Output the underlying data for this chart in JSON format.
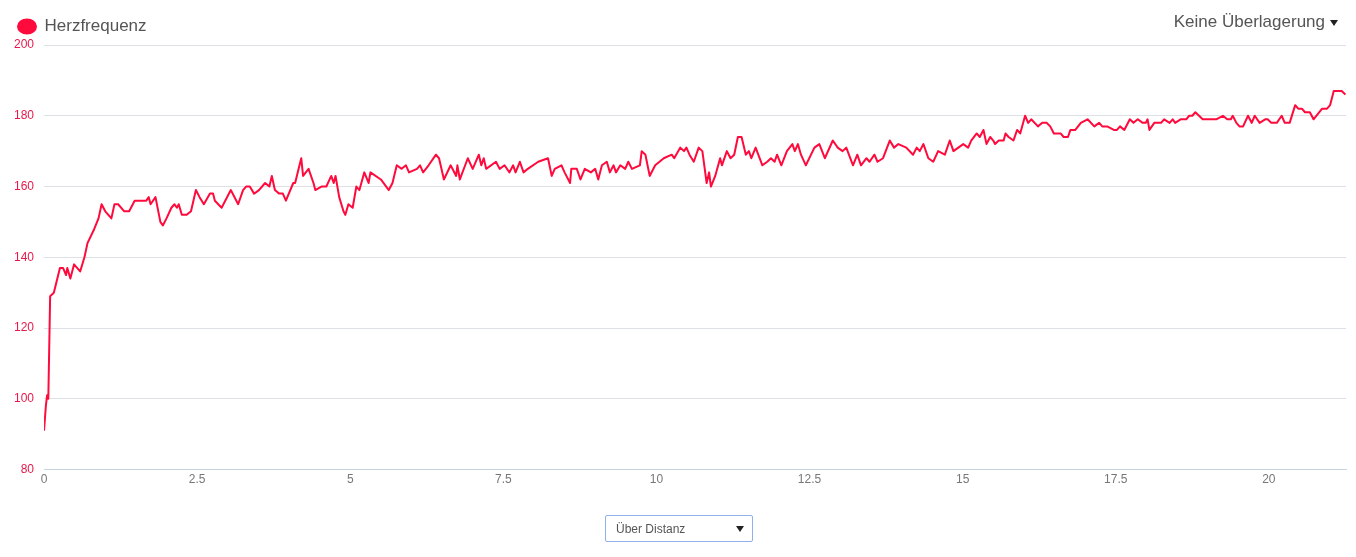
{
  "chart_data": {
    "type": "line",
    "x": [
      0,
      0.03,
      0.05,
      0.07,
      0.1,
      0.16,
      0.26,
      0.31,
      0.36,
      0.38,
      0.43,
      0.49,
      0.59,
      0.66,
      0.71,
      0.82,
      0.89,
      0.94,
      1.0,
      1.1,
      1.15,
      1.21,
      1.31,
      1.39,
      1.48,
      1.67,
      1.71,
      1.74,
      1.82,
      1.9,
      1.94,
      2.0,
      2.08,
      2.13,
      2.17,
      2.2,
      2.25,
      2.33,
      2.4,
      2.48,
      2.54,
      2.61,
      2.71,
      2.76,
      2.79,
      2.9,
      3.05,
      3.17,
      3.25,
      3.3,
      3.36,
      3.43,
      3.51,
      3.61,
      3.68,
      3.72,
      3.77,
      3.84,
      3.9,
      3.95,
      4.07,
      4.1,
      4.2,
      4.23,
      4.32,
      4.4,
      4.43,
      4.53,
      4.61,
      4.69,
      4.73,
      4.76,
      4.82,
      4.89,
      4.92,
      4.97,
      5.04,
      5.1,
      5.15,
      5.23,
      5.3,
      5.33,
      5.5,
      5.63,
      5.69,
      5.76,
      5.84,
      5.91,
      5.96,
      6.09,
      6.14,
      6.19,
      6.28,
      6.4,
      6.45,
      6.53,
      6.64,
      6.73,
      6.75,
      6.79,
      6.92,
      7.0,
      7.1,
      7.14,
      7.18,
      7.22,
      7.38,
      7.44,
      7.52,
      7.6,
      7.66,
      7.7,
      7.77,
      7.83,
      7.9,
      8.07,
      8.23,
      8.29,
      8.34,
      8.45,
      8.5,
      8.59,
      8.61,
      8.7,
      8.76,
      8.83,
      8.93,
      9.0,
      9.05,
      9.11,
      9.19,
      9.24,
      9.3,
      9.34,
      9.41,
      9.49,
      9.54,
      9.6,
      9.73,
      9.76,
      9.82,
      9.89,
      9.98,
      10.12,
      10.25,
      10.29,
      10.39,
      10.45,
      10.49,
      10.54,
      10.61,
      10.69,
      10.75,
      10.82,
      10.86,
      10.89,
      10.96,
      11.04,
      11.07,
      11.15,
      11.21,
      11.27,
      11.33,
      11.39,
      11.46,
      11.51,
      11.55,
      11.62,
      11.73,
      11.81,
      11.87,
      11.93,
      11.97,
      12.04,
      12.13,
      12.22,
      12.26,
      12.31,
      12.36,
      12.44,
      12.58,
      12.66,
      12.75,
      12.88,
      12.96,
      13.04,
      13.1,
      13.21,
      13.28,
      13.34,
      13.43,
      13.48,
      13.56,
      13.61,
      13.7,
      13.81,
      13.88,
      13.95,
      14.08,
      14.19,
      14.25,
      14.3,
      14.36,
      14.44,
      14.52,
      14.6,
      14.71,
      14.79,
      14.85,
      14.93,
      15.01,
      15.09,
      15.14,
      15.23,
      15.28,
      15.34,
      15.39,
      15.45,
      15.5,
      15.53,
      15.59,
      15.67,
      15.7,
      15.75,
      15.83,
      15.89,
      15.94,
      16.02,
      16.07,
      16.12,
      16.23,
      16.3,
      16.37,
      16.43,
      16.49,
      16.6,
      16.65,
      16.72,
      16.76,
      16.84,
      16.93,
      17.04,
      17.15,
      17.23,
      17.28,
      17.36,
      17.47,
      17.52,
      17.57,
      17.64,
      17.73,
      17.79,
      17.86,
      17.94,
      17.99,
      18.02,
      18.05,
      18.13,
      18.24,
      18.29,
      18.38,
      18.43,
      18.47,
      18.56,
      18.65,
      18.7,
      18.75,
      18.8,
      18.86,
      18.92,
      19.14,
      19.25,
      19.32,
      19.38,
      19.41,
      19.47,
      19.52,
      19.58,
      19.66,
      19.72,
      19.77,
      19.85,
      19.94,
      19.98,
      20.04,
      20.13,
      20.21,
      20.26,
      20.34,
      20.43,
      20.48,
      20.54,
      20.59,
      20.67,
      20.73,
      20.87,
      20.95,
      21.0,
      21.06,
      21.19,
      21.25
    ],
    "series": [
      {
        "name": "Herzfrequenz",
        "color": "#ff0a3c",
        "values": [
          91,
          98,
          101,
          100,
          129,
          130,
          137,
          137,
          135,
          137,
          134,
          138,
          136,
          140,
          144,
          148,
          151,
          155,
          153,
          151,
          155,
          155,
          153,
          153,
          156,
          156,
          157,
          155,
          157,
          150,
          149,
          151,
          154,
          155,
          154,
          155,
          152,
          152,
          153,
          159,
          157,
          155,
          158,
          158,
          156,
          154,
          159,
          155,
          159,
          160,
          160,
          158,
          159,
          161,
          160,
          163,
          159,
          158,
          158,
          156,
          161,
          161,
          168,
          163,
          165,
          161,
          159,
          160,
          160,
          163,
          161,
          163,
          157,
          153,
          152,
          155,
          154,
          160,
          159,
          164,
          161,
          164,
          162,
          159,
          161,
          166,
          165,
          166,
          164,
          165,
          166,
          164,
          166,
          169,
          168,
          162,
          166,
          163,
          166,
          162,
          168,
          165,
          169,
          166,
          168,
          165,
          167,
          165,
          166,
          164,
          166,
          164,
          167,
          164,
          165,
          167,
          168,
          163,
          165,
          166,
          164,
          161,
          165,
          165,
          162,
          165,
          164,
          165,
          162,
          166,
          167,
          164,
          166,
          164,
          166,
          165,
          167,
          165,
          166,
          170,
          169,
          163,
          166,
          168,
          169,
          168,
          171,
          170,
          171,
          169,
          167,
          171,
          170,
          161,
          164,
          160,
          163,
          168,
          166,
          170,
          168,
          169,
          174,
          174,
          169,
          170,
          168,
          171,
          166,
          167,
          168,
          167,
          169,
          166,
          170,
          172,
          170,
          172,
          169,
          166,
          171,
          172,
          168,
          173,
          171,
          170,
          171,
          166,
          169,
          166,
          168,
          167,
          169,
          167,
          168,
          173,
          171,
          172,
          171,
          169,
          171,
          170,
          172,
          168,
          167,
          170,
          169,
          173,
          170,
          171,
          172,
          171,
          173,
          175,
          174,
          176,
          172,
          174,
          173,
          172,
          173,
          173,
          175,
          174,
          173,
          176,
          175,
          180,
          178,
          179,
          177,
          178,
          178,
          177,
          175,
          175,
          174,
          174,
          176,
          176,
          178,
          179,
          177,
          178,
          177,
          177,
          176,
          176,
          177,
          176,
          179,
          178,
          179,
          178,
          178,
          179,
          176,
          178,
          178,
          179,
          178,
          179,
          178,
          179,
          179,
          180,
          180,
          181,
          180,
          179,
          179,
          180,
          179,
          179,
          180,
          178,
          177,
          177,
          180,
          178,
          180,
          178,
          179,
          179,
          178,
          178,
          180,
          178,
          178,
          183,
          182,
          182,
          181,
          181,
          179,
          182,
          182,
          183,
          187,
          187,
          186
        ]
      }
    ],
    "xlim": [
      0,
      21.26
    ],
    "xticks": [
      0,
      2.5,
      5,
      7.5,
      10,
      12.5,
      15,
      17.5,
      20
    ],
    "ylim": [
      80,
      200
    ],
    "yticks": [
      80,
      100,
      120,
      140,
      160,
      180,
      200
    ],
    "grid": "y",
    "legend": "top left",
    "marker": "none",
    "line_style": "solid",
    "annotations": [
      "Keine Überlagerung",
      "Über Distanz"
    ]
  }
}
